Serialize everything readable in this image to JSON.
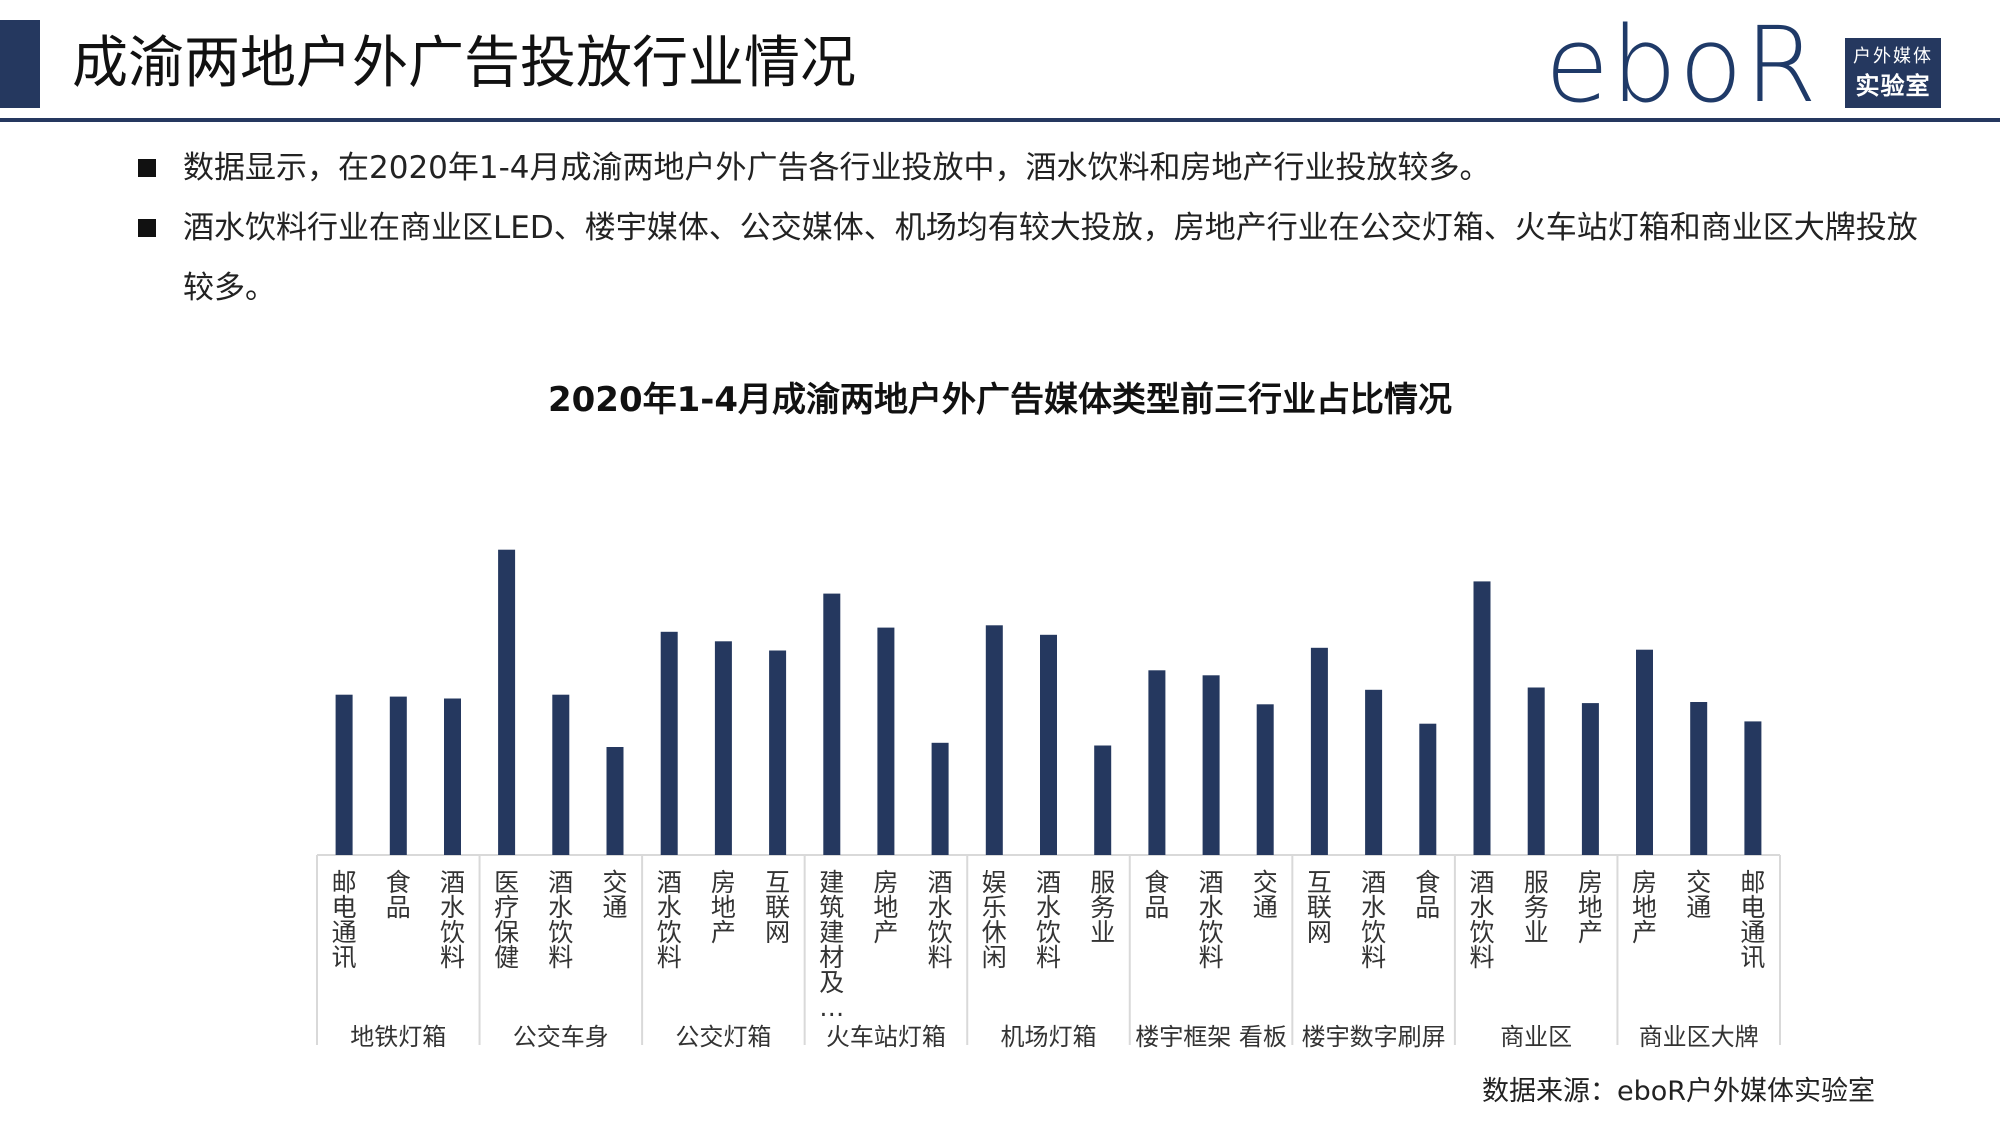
{
  "header": {
    "title": "成渝两地户外广告投放行业情况",
    "logo_text": "eboR",
    "logo_box_line1": "户外媒体",
    "logo_box_line2": "实验室"
  },
  "bullets": [
    "数据显示，在2020年1-4月成渝两地户外广告各行业投放中，酒水饮料和房地产行业投放较多。",
    "酒水饮料行业在商业区LED、楼宇媒体、公交媒体、机场均有较大投放，房地产行业在公交灯箱、火车站灯箱和商业区大牌投放较多。"
  ],
  "source": "数据来源：eboR户外媒体实验室",
  "colors": {
    "bar": "#25385f",
    "accent": "#25385f",
    "axis": "#d9d9d9"
  },
  "chart_data": {
    "type": "bar",
    "title": "2020年1-4月成渝两地户外广告媒体类型前三行业占比情况",
    "xlabel": "",
    "ylabel": "",
    "ylim": [
      0,
      100
    ],
    "groups": [
      {
        "name": "地铁灯箱",
        "items": [
          {
            "label": "邮电通讯",
            "value": 42
          },
          {
            "label": "食品",
            "value": 41.5
          },
          {
            "label": "酒水饮料",
            "value": 41
          }
        ]
      },
      {
        "name": "公交车身",
        "items": [
          {
            "label": "医疗保健",
            "value": 80
          },
          {
            "label": "酒水饮料",
            "value": 42
          },
          {
            "label": "交通",
            "value": 28.3
          }
        ]
      },
      {
        "name": "公交灯箱",
        "items": [
          {
            "label": "酒水饮料",
            "value": 58.5
          },
          {
            "label": "房地产",
            "value": 56
          },
          {
            "label": "互联网",
            "value": 53.6
          }
        ]
      },
      {
        "name": "火车站灯箱",
        "items": [
          {
            "label": "建筑建材及…",
            "value": 68.5
          },
          {
            "label": "房地产",
            "value": 59.6
          },
          {
            "label": "酒水饮料",
            "value": 29.4
          }
        ]
      },
      {
        "name": "机场灯箱",
        "items": [
          {
            "label": "娱乐休闲",
            "value": 60.2
          },
          {
            "label": "酒水饮料",
            "value": 57.7
          },
          {
            "label": "服务业",
            "value": 28.7
          }
        ]
      },
      {
        "name": "楼宇框架 看板",
        "items": [
          {
            "label": "食品",
            "value": 48.4
          },
          {
            "label": "酒水饮料",
            "value": 47.1
          },
          {
            "label": "交通",
            "value": 39.5
          }
        ]
      },
      {
        "name": "楼宇数字刷屏",
        "items": [
          {
            "label": "互联网",
            "value": 54.3
          },
          {
            "label": "酒水饮料",
            "value": 43.3
          },
          {
            "label": "食品",
            "value": 34.4
          }
        ]
      },
      {
        "name": "商业区",
        "items": [
          {
            "label": "酒水饮料",
            "value": 71.7
          },
          {
            "label": "服务业",
            "value": 43.9
          },
          {
            "label": "房地产",
            "value": 39.8
          }
        ]
      },
      {
        "name": "商业区大牌",
        "items": [
          {
            "label": "房地产",
            "value": 53.8
          },
          {
            "label": "交通",
            "value": 40.1
          },
          {
            "label": "邮电通讯",
            "value": 35
          }
        ]
      }
    ]
  }
}
